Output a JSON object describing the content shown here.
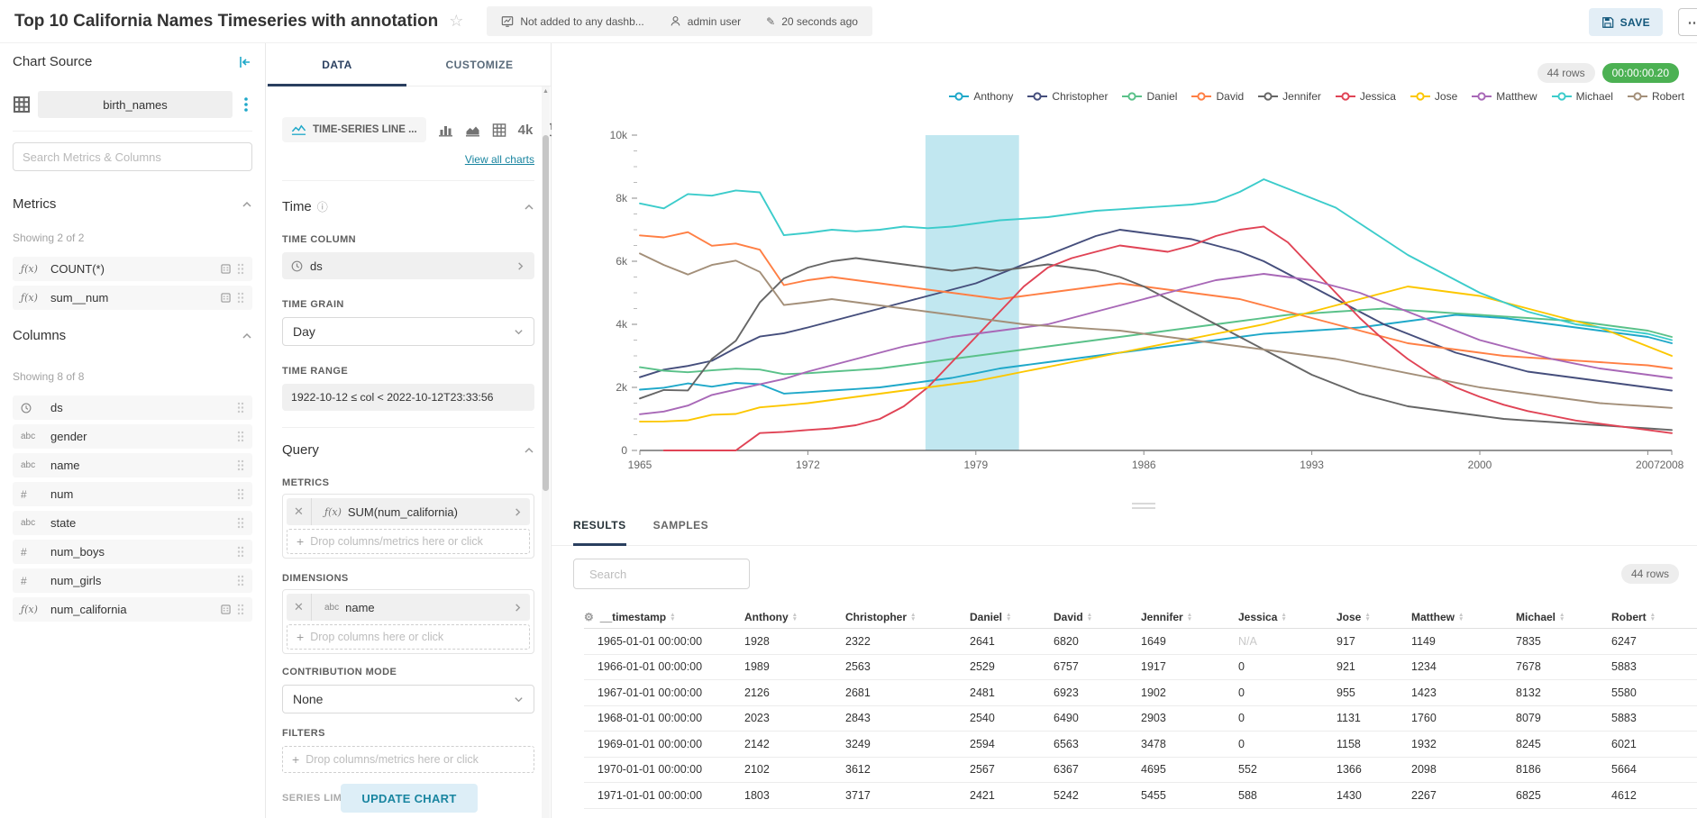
{
  "header": {
    "title": "Top 10 California Names Timeseries with annotation",
    "dashboard_status": "Not added to any dashb...",
    "owner": "admin user",
    "last_modified": "20 seconds ago",
    "save_label": "SAVE",
    "more_label": "..."
  },
  "datasource_panel": {
    "title": "Chart Source",
    "dataset_name": "birth_names",
    "search_placeholder": "Search Metrics & Columns",
    "metrics_section": {
      "label": "Metrics",
      "showing": "Showing 2 of 2",
      "items": [
        {
          "type": "function",
          "label": "COUNT(*)",
          "certified": true
        },
        {
          "type": "function",
          "label": "sum__num",
          "certified": true
        }
      ]
    },
    "columns_section": {
      "label": "Columns",
      "showing": "Showing 8 of 8",
      "items": [
        {
          "type": "time",
          "label": "ds",
          "certified": false
        },
        {
          "type": "text",
          "label": "gender",
          "certified": false
        },
        {
          "type": "text",
          "label": "name",
          "certified": false
        },
        {
          "type": "numeric",
          "label": "num",
          "certified": false
        },
        {
          "type": "text",
          "label": "state",
          "certified": false
        },
        {
          "type": "numeric",
          "label": "num_boys",
          "certified": false
        },
        {
          "type": "numeric",
          "label": "num_girls",
          "certified": false
        },
        {
          "type": "function",
          "label": "num_california",
          "certified": true
        }
      ]
    }
  },
  "control_panel": {
    "tabs": [
      "DATA",
      "CUSTOMIZE"
    ],
    "viz_type": {
      "selected": "TIME-SERIES LINE ...",
      "big_number_label": "4k",
      "view_all": "View all charts"
    },
    "time_section": {
      "label": "Time",
      "time_column": {
        "label": "TIME COLUMN",
        "value": "ds"
      },
      "time_grain": {
        "label": "TIME GRAIN",
        "value": "Day"
      },
      "time_range": {
        "label": "TIME RANGE",
        "value": "1922-10-12 ≤ col < 2022-10-12T23:33:56"
      }
    },
    "query_section": {
      "label": "Query",
      "metrics": {
        "label": "METRICS",
        "chip_prefix": "ƒ(x)",
        "chip": "SUM(num_california)",
        "drop_hint": "Drop columns/metrics here or click"
      },
      "dimensions": {
        "label": "DIMENSIONS",
        "chip_prefix": "abc",
        "chip": "name",
        "drop_hint": "Drop columns here or click"
      },
      "contribution_mode": {
        "label": "CONTRIBUTION MODE",
        "value": "None"
      },
      "filters": {
        "label": "FILTERS",
        "drop_hint": "Drop columns/metrics here or click"
      },
      "series_limit_label": "SERIES LIMIT",
      "update_button": "UPDATE CHART"
    }
  },
  "chart_panel": {
    "row_count_badge": "44 rows",
    "timer_badge": "00:00:00.20"
  },
  "results_panel": {
    "tabs": [
      "RESULTS",
      "SAMPLES"
    ],
    "search_placeholder": "Search",
    "row_count_badge": "44 rows",
    "table": {
      "columns": [
        "__timestamp",
        "Anthony",
        "Christopher",
        "Daniel",
        "David",
        "Jennifer",
        "Jessica",
        "Jose",
        "Matthew",
        "Michael",
        "Robert"
      ],
      "rows": [
        [
          "1965-01-01 00:00:00",
          "1928",
          "2322",
          "2641",
          "6820",
          "1649",
          "N/A",
          "917",
          "1149",
          "7835",
          "6247"
        ],
        [
          "1966-01-01 00:00:00",
          "1989",
          "2563",
          "2529",
          "6757",
          "1917",
          "0",
          "921",
          "1234",
          "7678",
          "5883"
        ],
        [
          "1967-01-01 00:00:00",
          "2126",
          "2681",
          "2481",
          "6923",
          "1902",
          "0",
          "955",
          "1423",
          "8132",
          "5580"
        ],
        [
          "1968-01-01 00:00:00",
          "2023",
          "2843",
          "2540",
          "6490",
          "2903",
          "0",
          "1131",
          "1760",
          "8079",
          "5883"
        ],
        [
          "1969-01-01 00:00:00",
          "2142",
          "3249",
          "2594",
          "6563",
          "3478",
          "0",
          "1158",
          "1932",
          "8245",
          "6021"
        ],
        [
          "1970-01-01 00:00:00",
          "2102",
          "3612",
          "2567",
          "6367",
          "4695",
          "552",
          "1366",
          "2098",
          "8186",
          "5664"
        ],
        [
          "1971-01-01 00:00:00",
          "1803",
          "3717",
          "2421",
          "5242",
          "5455",
          "588",
          "1430",
          "2267",
          "6825",
          "4612"
        ]
      ]
    }
  },
  "chart_data": {
    "type": "line",
    "title": "",
    "xlabel": "",
    "ylabel": "",
    "x_start": 1965,
    "x_end": 2008,
    "ylim": [
      0,
      10000
    ],
    "ytick_values": [
      0,
      2000,
      4000,
      6000,
      8000,
      10000
    ],
    "ytick_labels": [
      "0",
      "2k",
      "4k",
      "6k",
      "8k",
      "10k"
    ],
    "xticks": [
      1965,
      1972,
      1979,
      1986,
      1993,
      2000,
      2007,
      2008
    ],
    "grid": false,
    "legend_position": "top-right",
    "annotation_band": {
      "x_start": 1976.9,
      "x_end": 1980.8,
      "color": "rgba(31,168,201,0.28)"
    },
    "series": [
      {
        "name": "Anthony",
        "color": "#1FA8C9",
        "values": [
          1928,
          1989,
          2126,
          2023,
          2142,
          2102,
          1803,
          1850,
          1900,
          1950,
          2000,
          2100,
          2200,
          2300,
          2450,
          2600,
          2700,
          2800,
          2900,
          3000,
          3100,
          3200,
          3300,
          3400,
          3500,
          3600,
          3700,
          3750,
          3800,
          3850,
          3900,
          4000,
          4100,
          4200,
          4300,
          4250,
          4200,
          4100,
          4000,
          3900,
          3800,
          3700,
          3600,
          3400
        ]
      },
      {
        "name": "Christopher",
        "color": "#454E7C",
        "values": [
          2322,
          2563,
          2681,
          2843,
          3249,
          3612,
          3717,
          3900,
          4100,
          4300,
          4500,
          4700,
          4900,
          5100,
          5300,
          5600,
          5900,
          6200,
          6500,
          6800,
          7000,
          6900,
          6800,
          6700,
          6500,
          6300,
          6000,
          5600,
          5200,
          4800,
          4400,
          4000,
          3700,
          3400,
          3100,
          2900,
          2700,
          2500,
          2400,
          2300,
          2200,
          2100,
          2000,
          1900
        ]
      },
      {
        "name": "Daniel",
        "color": "#5AC189",
        "values": [
          2641,
          2529,
          2481,
          2540,
          2594,
          2567,
          2421,
          2450,
          2500,
          2550,
          2600,
          2700,
          2800,
          2900,
          3000,
          3100,
          3200,
          3300,
          3400,
          3500,
          3600,
          3700,
          3800,
          3900,
          4000,
          4100,
          4200,
          4300,
          4350,
          4400,
          4450,
          4500,
          4450,
          4400,
          4350,
          4300,
          4250,
          4200,
          4150,
          4100,
          4000,
          3900,
          3800,
          3600
        ]
      },
      {
        "name": "David",
        "color": "#FF7F44",
        "values": [
          6820,
          6757,
          6923,
          6490,
          6563,
          6367,
          5242,
          5400,
          5500,
          5400,
          5300,
          5200,
          5100,
          5000,
          4900,
          4800,
          4900,
          5000,
          5100,
          5200,
          5300,
          5200,
          5100,
          5000,
          4900,
          4800,
          4600,
          4400,
          4200,
          4000,
          3800,
          3600,
          3400,
          3300,
          3200,
          3100,
          3000,
          2950,
          2900,
          2850,
          2800,
          2750,
          2700,
          2600
        ]
      },
      {
        "name": "Jennifer",
        "color": "#666666",
        "values": [
          1649,
          1917,
          1902,
          2903,
          3478,
          4695,
          5455,
          5800,
          6000,
          6100,
          6000,
          5900,
          5800,
          5700,
          5800,
          5700,
          5800,
          5900,
          5800,
          5700,
          5500,
          5200,
          4800,
          4400,
          4000,
          3600,
          3200,
          2800,
          2400,
          2100,
          1800,
          1600,
          1400,
          1300,
          1200,
          1100,
          1000,
          950,
          900,
          850,
          800,
          750,
          700,
          650
        ]
      },
      {
        "name": "Jessica",
        "color": "#E04355",
        "values": [
          null,
          0,
          0,
          0,
          0,
          552,
          588,
          650,
          700,
          800,
          1000,
          1400,
          2000,
          2800,
          3600,
          4400,
          5200,
          5800,
          6100,
          6300,
          6500,
          6400,
          6300,
          6500,
          6800,
          7000,
          7100,
          6600,
          5800,
          5000,
          4200,
          3500,
          2900,
          2400,
          2000,
          1700,
          1450,
          1250,
          1100,
          950,
          850,
          750,
          650,
          550
        ]
      },
      {
        "name": "Jose",
        "color": "#FCC700",
        "values": [
          917,
          921,
          955,
          1131,
          1158,
          1366,
          1430,
          1500,
          1600,
          1700,
          1800,
          1900,
          2000,
          2100,
          2200,
          2350,
          2500,
          2650,
          2800,
          2950,
          3100,
          3250,
          3400,
          3550,
          3700,
          3850,
          4000,
          4200,
          4400,
          4600,
          4800,
          5000,
          5200,
          5100,
          5000,
          4900,
          4700,
          4500,
          4300,
          4100,
          3900,
          3600,
          3300,
          3000
        ]
      },
      {
        "name": "Matthew",
        "color": "#A868B7",
        "values": [
          1149,
          1234,
          1423,
          1760,
          1932,
          2098,
          2267,
          2500,
          2700,
          2900,
          3100,
          3300,
          3450,
          3600,
          3700,
          3800,
          3900,
          4000,
          4200,
          4400,
          4600,
          4800,
          5000,
          5200,
          5400,
          5500,
          5600,
          5500,
          5400,
          5200,
          5000,
          4700,
          4400,
          4100,
          3800,
          3500,
          3300,
          3100,
          2900,
          2750,
          2600,
          2500,
          2400,
          2300
        ]
      },
      {
        "name": "Michael",
        "color": "#3CCCCB",
        "values": [
          7835,
          7678,
          8132,
          8079,
          8245,
          8186,
          6825,
          6900,
          7000,
          6950,
          7000,
          7100,
          7050,
          7100,
          7200,
          7300,
          7350,
          7400,
          7500,
          7600,
          7650,
          7700,
          7750,
          7800,
          7900,
          8200,
          8600,
          8300,
          8000,
          7700,
          7200,
          6700,
          6200,
          5800,
          5400,
          5000,
          4700,
          4400,
          4200,
          4000,
          3900,
          3800,
          3700,
          3500
        ]
      },
      {
        "name": "Robert",
        "color": "#A38F79",
        "values": [
          6247,
          5883,
          5580,
          5883,
          6021,
          5664,
          4612,
          4700,
          4800,
          4700,
          4600,
          4500,
          4400,
          4300,
          4200,
          4100,
          4000,
          3950,
          3900,
          3850,
          3800,
          3700,
          3600,
          3500,
          3400,
          3300,
          3200,
          3100,
          3000,
          2900,
          2750,
          2600,
          2450,
          2300,
          2150,
          2000,
          1900,
          1800,
          1700,
          1600,
          1500,
          1450,
          1400,
          1350
        ]
      }
    ]
  }
}
